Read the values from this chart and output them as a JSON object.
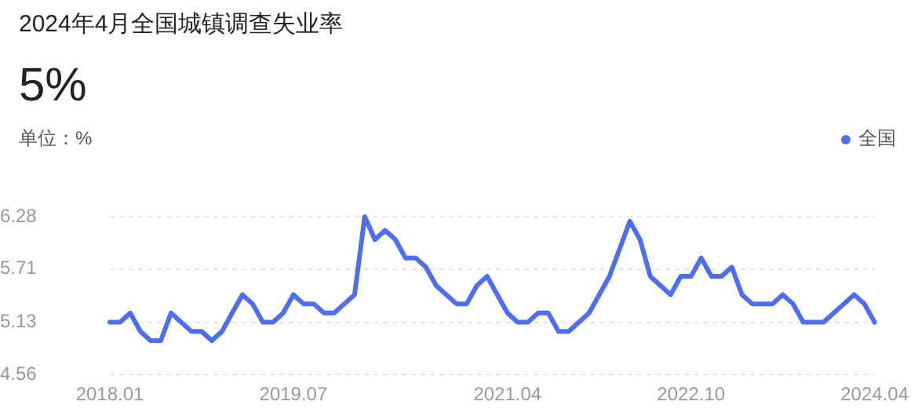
{
  "chart_data": {
    "type": "line",
    "title": "2024年4月全国城镇调查失业率",
    "subtitle": "5%",
    "ylabel": "单位：%",
    "categories": [
      "2018.01",
      null,
      null,
      null,
      null,
      null,
      null,
      null,
      null,
      null,
      null,
      null,
      null,
      null,
      null,
      null,
      null,
      null,
      "2019.07",
      null,
      null,
      null,
      null,
      null,
      null,
      null,
      null,
      null,
      null,
      null,
      null,
      null,
      null,
      null,
      null,
      null,
      null,
      null,
      null,
      "2021.04",
      null,
      null,
      null,
      null,
      null,
      null,
      null,
      null,
      null,
      null,
      null,
      null,
      null,
      null,
      null,
      null,
      null,
      "2022.10",
      null,
      null,
      null,
      null,
      null,
      null,
      null,
      null,
      null,
      null,
      null,
      null,
      null,
      null,
      null,
      null,
      null,
      "2024.04"
    ],
    "series": [
      {
        "name": "全国",
        "color": "#4e6ef2",
        "values": [
          5.13,
          5.13,
          5.23,
          5.03,
          4.93,
          4.93,
          5.23,
          5.13,
          5.03,
          5.03,
          4.93,
          5.03,
          5.23,
          5.43,
          5.33,
          5.13,
          5.13,
          5.23,
          5.43,
          5.33,
          5.33,
          5.23,
          5.23,
          5.33,
          5.43,
          6.28,
          6.03,
          6.13,
          6.03,
          5.83,
          5.83,
          5.73,
          5.53,
          5.43,
          5.33,
          5.33,
          5.53,
          5.63,
          5.43,
          5.23,
          5.13,
          5.13,
          5.23,
          5.23,
          5.03,
          5.03,
          5.13,
          5.23,
          5.43,
          5.63,
          5.93,
          6.23,
          6.03,
          5.63,
          5.53,
          5.43,
          5.63,
          5.63,
          5.83,
          5.63,
          5.63,
          5.73,
          5.43,
          5.33,
          5.33,
          5.33,
          5.43,
          5.33,
          5.13,
          5.13,
          5.13,
          5.23,
          5.33,
          5.43,
          5.33,
          5.13
        ]
      }
    ],
    "ylim": [
      4.56,
      6.28
    ],
    "yticks": [
      4.56,
      5.13,
      5.71,
      6.28
    ],
    "grid": "y",
    "legend": "top right",
    "marker": "none",
    "line_style": "solid"
  }
}
